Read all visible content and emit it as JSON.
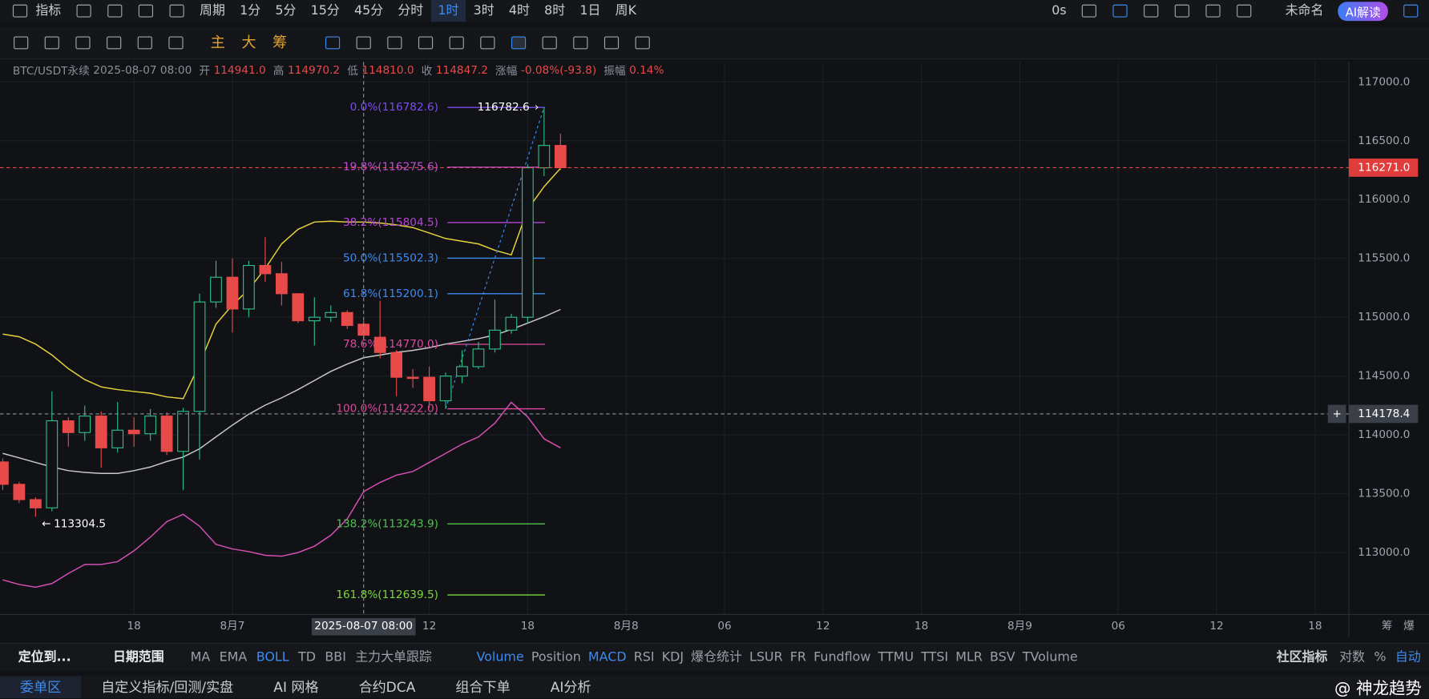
{
  "toolbar": {
    "indicator": "指标",
    "period": "周期",
    "intervals": [
      "1分",
      "5分",
      "15分",
      "45分",
      "分时",
      "1时",
      "3时",
      "4时",
      "8时",
      "1日",
      "周K"
    ],
    "active_interval": 5,
    "timer": "0s",
    "layout_name": "未命名",
    "ai_button": "AI解读"
  },
  "drawing_toolbar": {
    "chips": [
      "主",
      "大",
      "筹"
    ]
  },
  "info": {
    "symbol": "BTC/USDT永续",
    "time": "2025-08-07 08:00",
    "fields": [
      {
        "label": "开",
        "value": "114941.0"
      },
      {
        "label": "高",
        "value": "114970.2"
      },
      {
        "label": "低",
        "value": "114810.0"
      },
      {
        "label": "收",
        "value": "114847.2"
      },
      {
        "label": "涨幅",
        "value": "-0.08%(-93.8)"
      },
      {
        "label": "振幅",
        "value": "0.14%"
      }
    ]
  },
  "chart_data": {
    "type": "candlestick",
    "open": [
      113770,
      113580,
      113450,
      113380,
      114120,
      114020,
      114160,
      113890,
      114040,
      114010,
      114160,
      113860,
      114200,
      115130,
      115340,
      115070,
      115440,
      115370,
      115200,
      114970,
      115000,
      115040,
      114941,
      114830,
      114700,
      114490,
      114490,
      114290,
      114500,
      114580,
      114730,
      114890,
      115000,
      116270,
      116460
    ],
    "high": [
      113800,
      113600,
      113470,
      114370,
      114150,
      114250,
      114200,
      114280,
      114150,
      114220,
      114190,
      114230,
      115200,
      115480,
      115500,
      115480,
      115680,
      115470,
      115200,
      115170,
      115100,
      115060,
      114970.2,
      115140,
      114720,
      114560,
      114580,
      114530,
      114720,
      114790,
      115150,
      115030,
      116300,
      116782.6,
      116560
    ],
    "low": [
      113530,
      113420,
      113304.5,
      113350,
      113900,
      113950,
      113720,
      113850,
      113900,
      113950,
      113830,
      113530,
      113790,
      115080,
      114870,
      115000,
      115300,
      115100,
      114950,
      114760,
      114960,
      114900,
      114810,
      114650,
      114330,
      114400,
      114230,
      114222,
      114440,
      114560,
      114700,
      114860,
      114950,
      116200,
      116250
    ],
    "close": [
      113580,
      113450,
      113380,
      114120,
      114020,
      114160,
      113890,
      114040,
      114010,
      114160,
      113860,
      114200,
      115130,
      115340,
      115070,
      115440,
      115370,
      115200,
      114970,
      115000,
      115040,
      114930,
      114847.2,
      114700,
      114490,
      114480,
      114290,
      114500,
      114580,
      114730,
      114890,
      115000,
      116270,
      116460,
      116271
    ],
    "up_color": "#2ebd85",
    "down_color": "#e84a4a",
    "overlays": [
      {
        "color": "#e6d23a",
        "values": [
          114857,
          114834,
          114772,
          114679,
          114563,
          114470,
          114408,
          114385,
          114369,
          114354,
          114323,
          114308,
          114602,
          114942,
          115104,
          115236,
          115414,
          115623,
          115747,
          115809,
          115816,
          115809,
          115809,
          115801,
          115785,
          115762,
          115716,
          115669,
          115646,
          115623,
          115569,
          115530,
          115917,
          116110,
          116265
        ]
      },
      {
        "color": "#c8c8c8",
        "values": [
          113843,
          113805,
          113766,
          113727,
          113696,
          113681,
          113673,
          113673,
          113696,
          113727,
          113774,
          113812,
          113882,
          113983,
          114083,
          114176,
          114253,
          114315,
          114385,
          114462,
          114540,
          114602,
          114656,
          114679,
          114702,
          114718,
          114741,
          114772,
          114795,
          114818,
          114849,
          114896,
          114950,
          115004,
          115066
        ]
      },
      {
        "color": "#d64fb5",
        "values": [
          112768,
          112729,
          112706,
          112737,
          112822,
          112899,
          112899,
          112923,
          113015,
          113131,
          113263,
          113325,
          113224,
          113070,
          113031,
          113008,
          112977,
          112969,
          113000,
          113054,
          113147,
          113286,
          113518,
          113596,
          113658,
          113689,
          113766,
          113843,
          113921,
          113983,
          114099,
          114277,
          114153,
          113967,
          113890
        ]
      }
    ],
    "ylim": [
      112474,
      117170
    ],
    "yticks": [
      {
        "value": 117000,
        "label": "117000.0"
      },
      {
        "value": 116500,
        "label": "116500.0"
      },
      {
        "value": 116000,
        "label": "116000.0"
      },
      {
        "value": 115500,
        "label": "115500.0"
      },
      {
        "value": 115000,
        "label": "115000.0"
      },
      {
        "value": 114500,
        "label": "114500.0"
      },
      {
        "value": 114000,
        "label": "114000.0"
      },
      {
        "value": 113500,
        "label": "113500.0"
      },
      {
        "value": 113000,
        "label": "113000.0"
      }
    ],
    "xticks": [
      {
        "value": 8,
        "label": "18"
      },
      {
        "value": 14,
        "label": "8月7"
      },
      {
        "value": 26,
        "label": "12"
      },
      {
        "value": 32,
        "label": "18"
      },
      {
        "value": 38,
        "label": "8月8"
      },
      {
        "value": 44,
        "label": "06"
      },
      {
        "value": 50,
        "label": "12"
      },
      {
        "value": 56,
        "label": "18"
      },
      {
        "value": 62,
        "label": "8月9"
      },
      {
        "value": 68,
        "label": "06"
      },
      {
        "value": 74,
        "label": "12"
      },
      {
        "value": 80,
        "label": "18"
      }
    ],
    "grid": true,
    "last_price": {
      "value": 116271,
      "label": "116271.0"
    },
    "crosshair": {
      "price": {
        "value": 114178.4,
        "label": "114178.4"
      },
      "time": {
        "value": 22,
        "label": "2025-08-07 08:00"
      }
    },
    "high_marker": {
      "index": 33,
      "value": 116782.6,
      "label": "116782.6"
    },
    "low_marker": {
      "index": 2,
      "value": 113304.5,
      "label": "113304.5"
    },
    "fib": [
      {
        "label": "0.0%(116782.6)",
        "price": 116782.6,
        "color": "#7b4cf0"
      },
      {
        "label": "19.8%(116275.6)",
        "price": 116275.6,
        "color": "#c04fd8"
      },
      {
        "label": "38.2%(115804.5)",
        "price": 115804.5,
        "color": "#b844d8"
      },
      {
        "label": "50.0%(115502.3)",
        "price": 115502.3,
        "color": "#3d8bf0"
      },
      {
        "label": "61.8%(115200.1)",
        "price": 115200.1,
        "color": "#3d8bf0"
      },
      {
        "label": "78.6%(114770.0)",
        "price": 114770.0,
        "color": "#e0479e"
      },
      {
        "label": "100.0%(114222.0)",
        "price": 114222.0,
        "color": "#e0479e"
      },
      {
        "label": "138.2%(113243.9)",
        "price": 113243.9,
        "color": "#4fc04f"
      },
      {
        "label": "161.8%(112639.5)",
        "price": 112639.5,
        "color": "#7cd83b"
      }
    ],
    "axis_corner": [
      "筹",
      "爆"
    ]
  },
  "bottom_bar": {
    "locate": "定位到...",
    "date_range": "日期范围",
    "main_indicators": [
      "MA",
      "EMA",
      "BOLL",
      "TD",
      "BBI",
      "主力大单跟踪"
    ],
    "active_main": 2,
    "sub_indicators": [
      "Volume",
      "Position",
      "MACD",
      "RSI",
      "KDJ",
      "爆仓统计",
      "LSUR",
      "FR",
      "Fundflow",
      "TTMU",
      "TTSI",
      "MLR",
      "BSV",
      "TVolume"
    ],
    "active_sub": [
      0,
      2
    ],
    "community": "社区指标",
    "scale_options": [
      "对数",
      "%",
      "自动"
    ],
    "active_scale": 2
  },
  "tabs": {
    "items": [
      "委单区",
      "自定义指标/回测/实盘",
      "AI 网格",
      "合约DCA",
      "组合下单",
      "AI分析"
    ],
    "active": 0
  },
  "watermark": "@ 神龙趋势"
}
